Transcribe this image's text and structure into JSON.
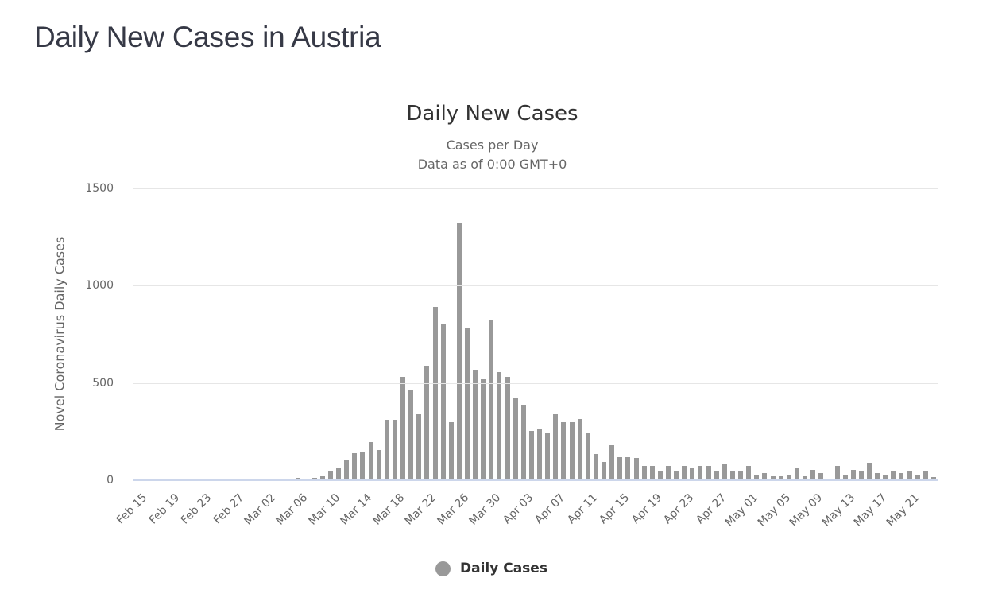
{
  "page": {
    "title": "Daily New Cases in Austria"
  },
  "chart_data": {
    "type": "bar",
    "title": "Daily New Cases",
    "subtitle": [
      "Cases per Day",
      "Data as of 0:00 GMT+0"
    ],
    "xlabel": "",
    "ylabel": "Novel Coronavirus Daily Cases",
    "ylim": [
      0,
      1500
    ],
    "yticks": [
      0,
      500,
      1000,
      1500
    ],
    "grid": true,
    "legend_position": "bottom",
    "bar_color": "#999999",
    "xtick_labels": [
      "Feb 15",
      "Feb 19",
      "Feb 23",
      "Feb 27",
      "Mar 02",
      "Mar 06",
      "Mar 10",
      "Mar 14",
      "Mar 18",
      "Mar 22",
      "Mar 26",
      "Mar 30",
      "Apr 03",
      "Apr 07",
      "Apr 11",
      "Apr 15",
      "Apr 19",
      "Apr 23",
      "Apr 27",
      "May 01",
      "May 05",
      "May 09",
      "May 13",
      "May 17",
      "May 21"
    ],
    "series": [
      {
        "name": "Daily Cases",
        "start_date": "Feb 15",
        "end_date": "May 24",
        "values": [
          0,
          0,
          0,
          0,
          0,
          0,
          0,
          0,
          0,
          0,
          2,
          0,
          0,
          0,
          0,
          0,
          1,
          1,
          1,
          8,
          14,
          8,
          14,
          22,
          48,
          60,
          107,
          140,
          147,
          196,
          155,
          312,
          312,
          530,
          465,
          340,
          590,
          890,
          805,
          300,
          1320,
          785,
          570,
          520,
          825,
          555,
          530,
          420,
          390,
          255,
          265,
          240,
          340,
          300,
          300,
          315,
          240,
          135,
          95,
          180,
          120,
          120,
          115,
          75,
          75,
          45,
          75,
          50,
          75,
          65,
          75,
          75,
          45,
          85,
          45,
          50,
          75,
          25,
          35,
          20,
          20,
          25,
          60,
          20,
          55,
          35,
          10,
          75,
          30,
          55,
          50,
          90,
          35,
          25,
          50,
          35,
          50,
          30,
          45,
          15
        ]
      }
    ]
  },
  "legend": {
    "items": [
      {
        "label": "Daily Cases",
        "color": "#999999"
      }
    ]
  }
}
